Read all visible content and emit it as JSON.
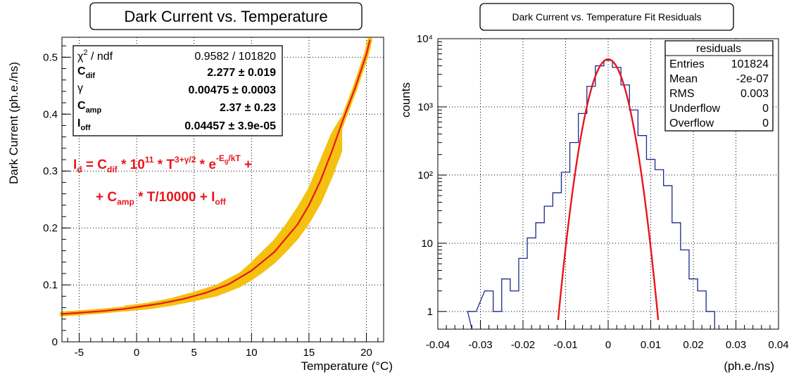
{
  "colors": {
    "fit": "#e8161c",
    "scatter": "#f5c10f",
    "histogram": "#1a2a8c",
    "formula": "#e8161c"
  },
  "chart_data": [
    {
      "type": "scatter",
      "title": "Dark Current vs. Temperature",
      "xlabel": "Temperature (°C)",
      "ylabel": "Dark Current (ph.e./ns)",
      "xlim": [
        -6.5,
        21.5
      ],
      "ylim": [
        0,
        0.535
      ],
      "grid": true,
      "x_ticks": [
        -5,
        0,
        5,
        10,
        15,
        20
      ],
      "y_ticks": [
        0,
        0.1,
        0.2,
        0.3,
        0.4,
        0.5
      ],
      "x_tick_labels": [
        "-5",
        "0",
        "5",
        "10",
        "15",
        "20"
      ],
      "y_tick_labels": [
        "0",
        "0.1",
        "0.2",
        "0.3",
        "0.4",
        "0.5"
      ],
      "fit_curve": {
        "x": [
          -6.5,
          -5,
          -3,
          -1,
          0,
          2,
          4,
          6,
          8,
          10,
          12,
          14,
          15,
          16,
          17,
          18,
          19,
          20,
          20.3
        ],
        "y": [
          0.049,
          0.051,
          0.054,
          0.058,
          0.061,
          0.067,
          0.075,
          0.086,
          0.101,
          0.125,
          0.158,
          0.206,
          0.24,
          0.283,
          0.335,
          0.392,
          0.445,
          0.505,
          0.53
        ]
      },
      "scatter_band": {
        "x": [
          -1,
          1,
          3,
          5,
          7,
          9,
          10,
          11,
          12,
          13,
          14,
          15,
          16,
          17,
          17.8
        ],
        "y_low": [
          0.055,
          0.059,
          0.065,
          0.073,
          0.082,
          0.098,
          0.11,
          0.124,
          0.14,
          0.16,
          0.182,
          0.21,
          0.245,
          0.292,
          0.335
        ],
        "y_high": [
          0.062,
          0.067,
          0.075,
          0.086,
          0.099,
          0.12,
          0.138,
          0.158,
          0.178,
          0.204,
          0.234,
          0.268,
          0.316,
          0.365,
          0.392
        ]
      },
      "stats_box": [
        {
          "label": "χ² / ndf",
          "value": "0.9582 / 101820",
          "bold": false
        },
        {
          "label": "C_dif",
          "value": "2.277  ± 0.019",
          "bold": true
        },
        {
          "label": "γ",
          "value": "0.00475  ± 0.0003",
          "bold": true
        },
        {
          "label": "C_amp",
          "value": "2.37  ± 0.23",
          "bold": true
        },
        {
          "label": "I_off",
          "value": "0.04457  ± 3.9e-05",
          "bold": true
        }
      ],
      "formula_line1": "I_d =   C_dif * 10^11 * T^(3+γ/2) * e^(-E_g/kT)  +",
      "formula_line2": "+ C_amp * T/10000 + I_off"
    },
    {
      "type": "histogram",
      "title": "Dark Current vs. Temperature Fit Residuals",
      "xlabel": "(ph.e./ns)",
      "ylabel": "counts",
      "xlim": [
        -0.04,
        0.04
      ],
      "ylim": [
        0.55,
        10000
      ],
      "log_y": true,
      "grid": true,
      "x_ticks": [
        -0.04,
        -0.03,
        -0.02,
        -0.01,
        0,
        0.01,
        0.02,
        0.03,
        0.04
      ],
      "x_tick_labels": [
        "-0.04",
        "-0.03",
        "-0.02",
        "-0.01",
        "0",
        "0.01",
        "0.02",
        "0.03",
        "0.04"
      ],
      "y_ticks": [
        1,
        10,
        100,
        1000,
        10000
      ],
      "y_tick_labels": [
        "1",
        "10",
        "10²",
        "10³",
        "10⁴"
      ],
      "histogram_outline": {
        "x": [
          -0.032,
          -0.028,
          -0.026,
          -0.024,
          -0.022,
          -0.02,
          -0.018,
          -0.016,
          -0.014,
          -0.012,
          -0.01,
          -0.008,
          -0.006,
          -0.004,
          -0.002,
          0,
          0.002,
          0.004,
          0.006,
          0.008,
          0.01,
          0.012,
          0.014,
          0.016,
          0.018,
          0.02,
          0.022,
          0.024
        ],
        "y": [
          1,
          2,
          1,
          3,
          2,
          6,
          12,
          20,
          35,
          55,
          110,
          300,
          800,
          2000,
          4000,
          4800,
          3800,
          2100,
          900,
          380,
          170,
          120,
          70,
          20,
          8,
          3,
          2,
          1
        ]
      },
      "gaussian_fit": {
        "mean": 0.0,
        "sigma": 0.0028,
        "peak": 5000
      },
      "stats_box": {
        "name": "residuals",
        "rows": [
          {
            "label": "Entries",
            "value": "101824"
          },
          {
            "label": "Mean",
            "value": "-2e-07"
          },
          {
            "label": "RMS",
            "value": "0.003"
          },
          {
            "label": "Underflow",
            "value": "0"
          },
          {
            "label": "Overflow",
            "value": "0"
          }
        ]
      }
    }
  ]
}
